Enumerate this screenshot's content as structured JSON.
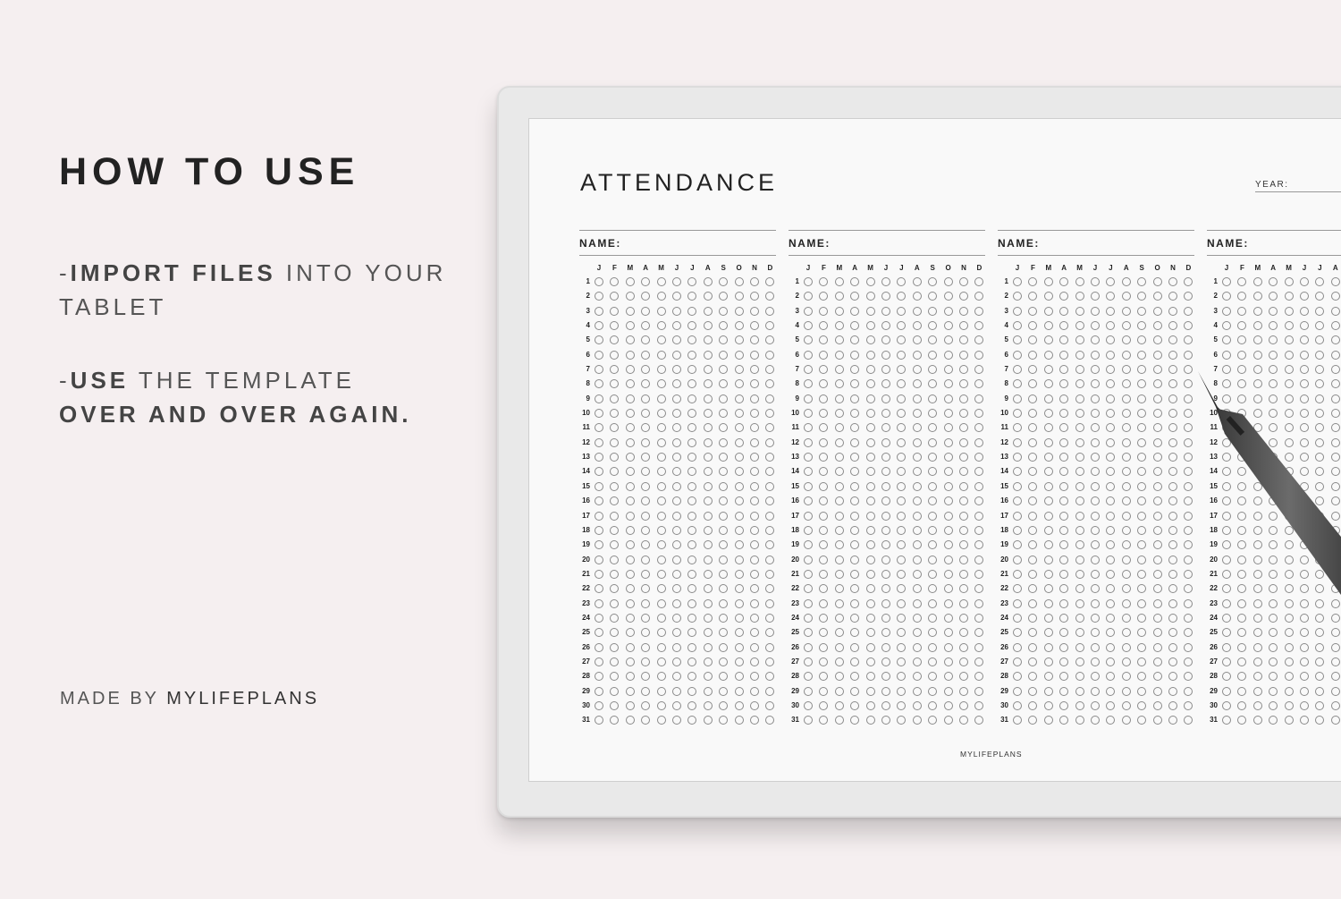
{
  "promo": {
    "title": "HOW TO USE",
    "step1_prefix": "-",
    "step1_bold": "IMPORT FILES",
    "step1_rest": " INTO YOUR",
    "step1_line2": "TABLET",
    "step2_prefix": "-",
    "step2_bold": "USE",
    "step2_rest": " THE TEMPLATE",
    "step2_line2": "OVER AND OVER AGAIN.",
    "credit_prefix": "MADE BY ",
    "credit_brand": "MYLIFEPLANS"
  },
  "sheet": {
    "title": "ATTENDANCE",
    "year_label": "YEAR:",
    "name_label": "NAME:",
    "months": [
      "J",
      "F",
      "M",
      "A",
      "M",
      "J",
      "J",
      "A",
      "S",
      "O",
      "N",
      "D"
    ],
    "days": [
      "1",
      "2",
      "3",
      "4",
      "5",
      "6",
      "7",
      "8",
      "9",
      "10",
      "11",
      "12",
      "13",
      "14",
      "15",
      "16",
      "17",
      "18",
      "19",
      "20",
      "21",
      "22",
      "23",
      "24",
      "25",
      "26",
      "27",
      "28",
      "29",
      "30",
      "31"
    ],
    "footer": "MYLIFEPLANS"
  },
  "colors": {
    "background": "#f5eff0",
    "tablet_frame": "#e9e9e9",
    "screen": "#f9f9f9",
    "pen": "#4a4a4a"
  }
}
